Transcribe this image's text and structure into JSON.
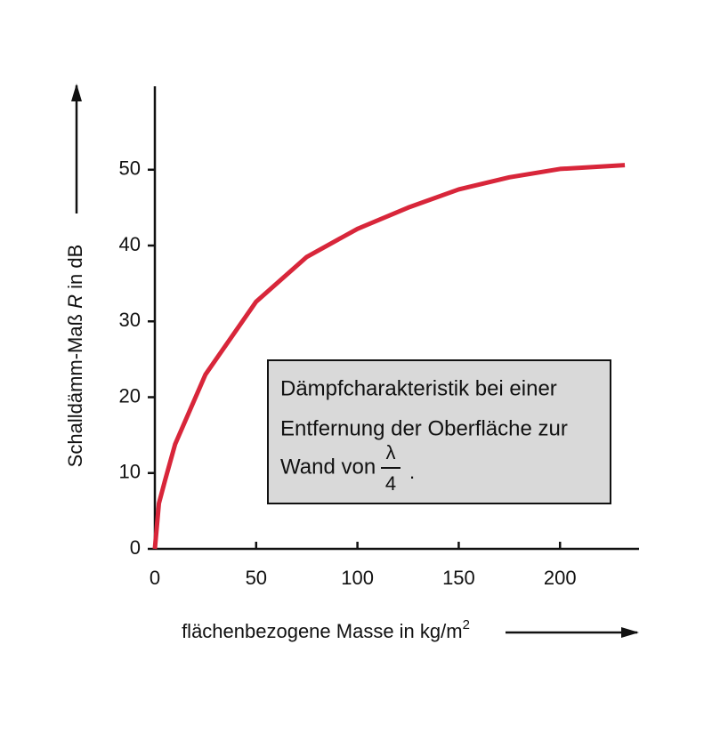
{
  "chart_data": {
    "type": "line",
    "x_label": "flächenbezogene Masse in kg/m",
    "x_label_sup": "2",
    "y_label": [
      "Schalldämm-Maß ",
      "R",
      " in dB"
    ],
    "annotation": {
      "lines": [
        "Dämpfcharakteristik bei einer",
        "Entfernung der Oberfläche zur",
        "Wand von"
      ],
      "numerator": "λ",
      "denominator": "4",
      "end": "."
    },
    "x": [
      0,
      2,
      5,
      10,
      25,
      50,
      75,
      100,
      125,
      150,
      175,
      200,
      232
    ],
    "series": [
      {
        "color": "#d8263a",
        "values": [
          0,
          6,
          9,
          13.8,
          23,
          32.6,
          38.5,
          42.2,
          45,
          47.4,
          49,
          50.1,
          50.6
        ]
      }
    ],
    "xlim": [
      0,
      239
    ],
    "ylim": [
      0,
      61
    ],
    "xticks": [
      0,
      50,
      100,
      150,
      200
    ],
    "yticks": [
      0,
      10,
      20,
      30,
      40,
      50
    ]
  }
}
